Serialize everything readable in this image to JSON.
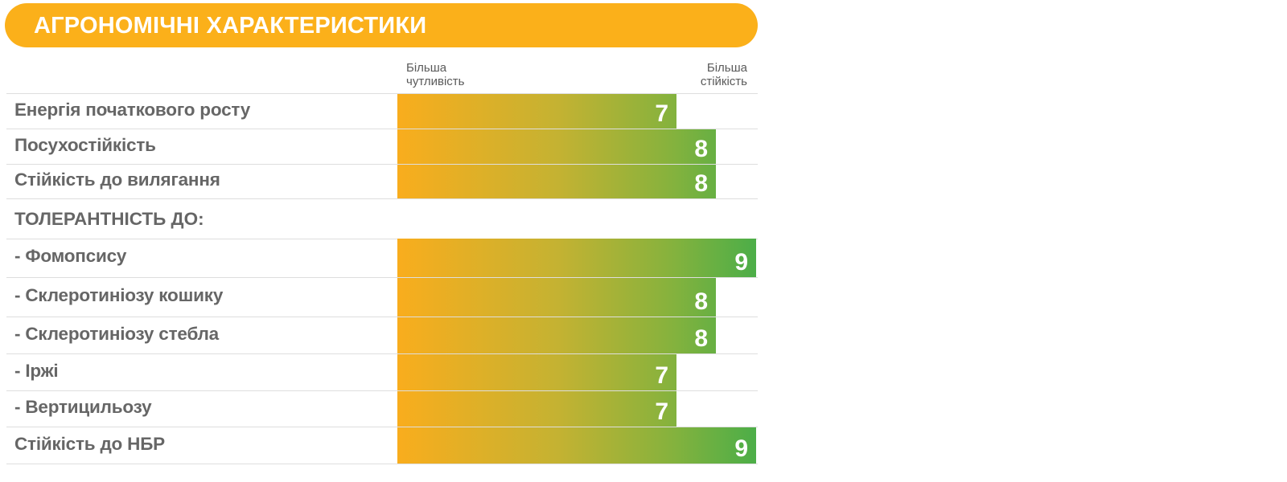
{
  "header": {
    "title": "АГРОНОМІЧНІ ХАРАКТЕРИСТИКИ"
  },
  "scale": {
    "left_line1": "Більша",
    "left_line2": "чутливість",
    "right_line1": "Більша",
    "right_line2": "стійкість"
  },
  "colors": {
    "banner": "#fbb01a",
    "bar_start": "#f9ad1d",
    "bar_end": "#4cae48",
    "label": "#666666"
  },
  "section_label": "ТОЛЕРАНТНІСТЬ ДО:",
  "chart_data": {
    "type": "bar",
    "orientation": "horizontal",
    "title": "АГРОНОМІЧНІ ХАРАКТЕРИСТИКИ",
    "xlim": [
      0,
      9
    ],
    "categories": [
      "Енергія початкового росту",
      "Посухостійкість",
      "Стійкість до вилягання",
      "- Фомопсису",
      "- Склеротиніозу кошику",
      "- Склеротиніозу стебла",
      "- Іржі",
      "- Вертицильозу",
      "Стійкість до НБР"
    ],
    "values": [
      7,
      8,
      8,
      9,
      8,
      8,
      7,
      7,
      9
    ],
    "value_labels": [
      "7",
      "8",
      "8",
      "9",
      "8",
      "8",
      "7",
      "7",
      "9"
    ]
  }
}
